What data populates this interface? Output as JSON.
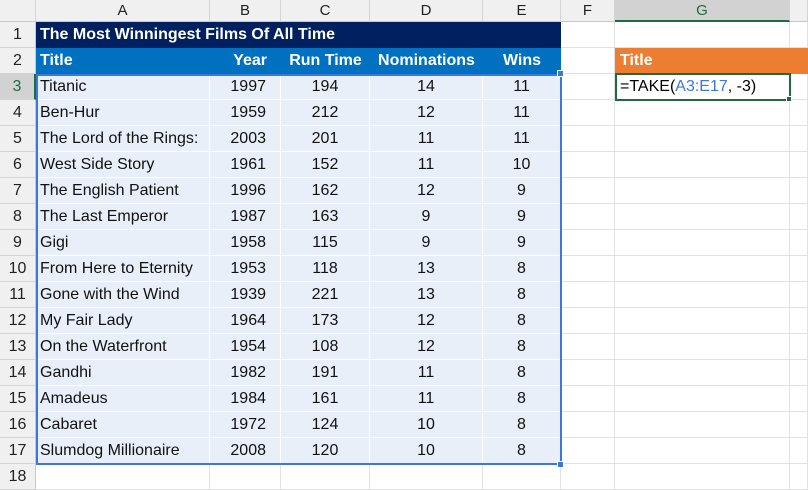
{
  "columns": [
    "A",
    "B",
    "C",
    "D",
    "E",
    "F",
    "G"
  ],
  "table": {
    "title": "The Most Winningest Films Of All Time",
    "headers": [
      "Title",
      "Year",
      "Run Time",
      "Nominations",
      "Wins"
    ],
    "rows": [
      [
        "Titanic",
        "1997",
        "194",
        "14",
        "11"
      ],
      [
        "Ben-Hur",
        "1959",
        "212",
        "12",
        "11"
      ],
      [
        "The Lord of the Rings:",
        "2003",
        "201",
        "11",
        "11"
      ],
      [
        "West Side Story",
        "1961",
        "152",
        "11",
        "10"
      ],
      [
        "The English Patient",
        "1996",
        "162",
        "12",
        "9"
      ],
      [
        "The Last Emperor",
        "1987",
        "163",
        "9",
        "9"
      ],
      [
        "Gigi",
        "1958",
        "115",
        "9",
        "9"
      ],
      [
        "From Here to Eternity",
        "1953",
        "118",
        "13",
        "8"
      ],
      [
        "Gone with the Wind",
        "1939",
        "221",
        "13",
        "8"
      ],
      [
        "My Fair Lady",
        "1964",
        "173",
        "12",
        "8"
      ],
      [
        "On the Waterfront",
        "1954",
        "108",
        "12",
        "8"
      ],
      [
        "Gandhi",
        "1982",
        "191",
        "11",
        "8"
      ],
      [
        "Amadeus",
        "1984",
        "161",
        "11",
        "8"
      ],
      [
        "Cabaret",
        "1972",
        "124",
        "10",
        "8"
      ],
      [
        "Slumdog Millionaire",
        "2008",
        "120",
        "10",
        "8"
      ]
    ]
  },
  "output": {
    "header": "Title",
    "formula_prefix": "=TAKE(",
    "formula_ref": "A3:E17",
    "formula_suffix": ", -3)"
  },
  "colors": {
    "title_bg": "#002060",
    "header_bg": "#0070C0",
    "row_bg": "#E8EFF9",
    "output_header_bg": "#ED7D31",
    "ref_color": "#3C78D8"
  }
}
